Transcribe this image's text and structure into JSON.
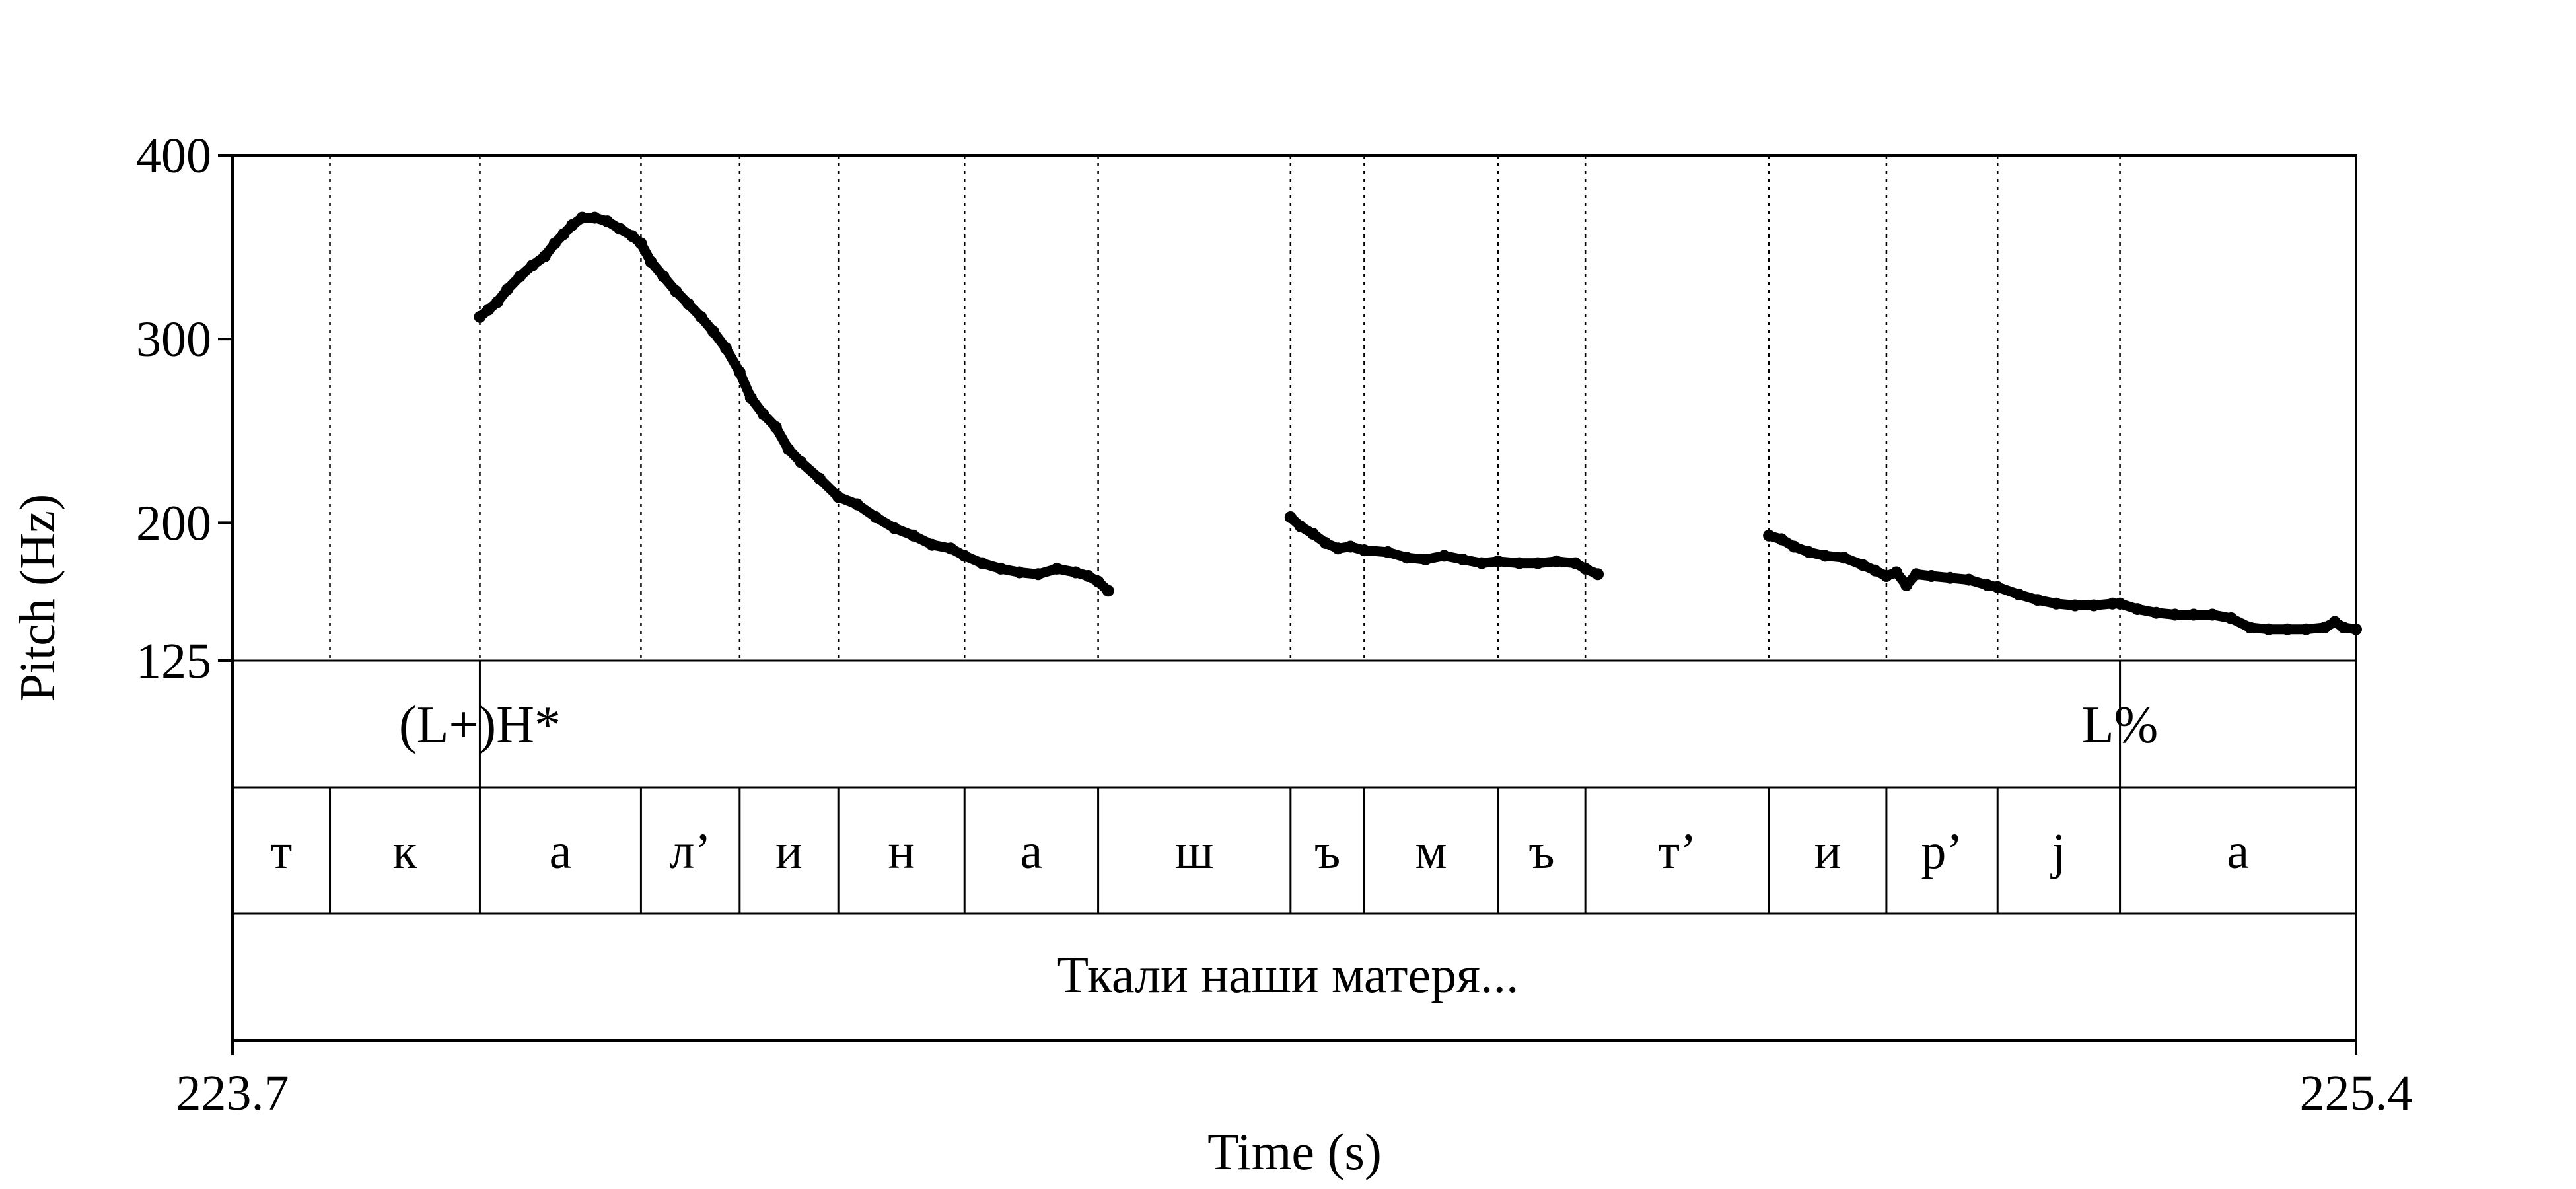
{
  "chart_data": {
    "type": "line",
    "ylabel": "Pitch (Hz)",
    "xlabel": "Time (s)",
    "xlim": [
      223.7,
      225.4
    ],
    "x_tick_labels": [
      "223.7",
      "225.4"
    ],
    "ylim": [
      125,
      400
    ],
    "y_tick_labels": [
      "400",
      "300",
      "200",
      "125"
    ],
    "y_ticks": [
      400,
      300,
      200,
      125
    ],
    "tone_tier": [
      {
        "label": "(L+)H*",
        "time": 223.898
      },
      {
        "label": "L%",
        "time": 225.211
      }
    ],
    "phone_boundaries": [
      223.778,
      223.898,
      224.027,
      224.106,
      224.185,
      224.286,
      224.393,
      224.547,
      224.606,
      224.713,
      224.783,
      224.93,
      225.024,
      225.113,
      225.211
    ],
    "phones": [
      "т",
      "к",
      "а",
      "л’",
      "и",
      "н",
      "а",
      "ш",
      "ъ",
      "м",
      "ъ",
      "т’",
      "и",
      "р’",
      "j",
      "а"
    ],
    "word_tier": "Ткали наши матеря...",
    "series": [
      {
        "values": [
          [
            [
              223.898,
              312
            ],
            [
              223.905,
              316
            ],
            [
              223.912,
              320
            ],
            [
              223.92,
              327
            ],
            [
              223.93,
              334
            ],
            [
              223.94,
              340
            ],
            [
              223.95,
              345
            ],
            [
              223.958,
              352
            ],
            [
              223.965,
              357
            ],
            [
              223.972,
              362
            ],
            [
              223.98,
              366
            ],
            [
              223.99,
              366
            ],
            [
              224.0,
              364
            ],
            [
              224.01,
              360
            ],
            [
              224.02,
              356
            ],
            [
              224.027,
              352
            ],
            [
              224.035,
              342
            ],
            [
              224.045,
              334
            ],
            [
              224.055,
              326
            ],
            [
              224.065,
              319
            ],
            [
              224.075,
              312
            ],
            [
              224.085,
              304
            ],
            [
              224.095,
              295
            ],
            [
              224.106,
              282
            ],
            [
              224.115,
              268
            ],
            [
              224.125,
              259
            ],
            [
              224.135,
              252
            ],
            [
              224.145,
              240
            ],
            [
              224.155,
              233
            ],
            [
              224.17,
              224
            ],
            [
              224.185,
              214
            ],
            [
              224.2,
              210
            ],
            [
              224.215,
              203
            ],
            [
              224.23,
              197
            ],
            [
              224.245,
              193
            ],
            [
              224.26,
              188
            ],
            [
              224.275,
              186
            ],
            [
              224.286,
              182
            ],
            [
              224.3,
              178
            ],
            [
              224.315,
              175
            ],
            [
              224.33,
              173
            ],
            [
              224.345,
              172
            ],
            [
              224.36,
              175
            ],
            [
              224.375,
              173
            ],
            [
              224.385,
              171
            ],
            [
              224.393,
              168
            ],
            [
              224.401,
              163
            ]
          ],
          [
            [
              224.547,
              203
            ],
            [
              224.555,
              198
            ],
            [
              224.565,
              194
            ],
            [
              224.575,
              189
            ],
            [
              224.585,
              186
            ],
            [
              224.595,
              187
            ],
            [
              224.606,
              185
            ],
            [
              224.625,
              184
            ],
            [
              224.64,
              181
            ],
            [
              224.655,
              180
            ],
            [
              224.67,
              182
            ],
            [
              224.685,
              180
            ],
            [
              224.7,
              178
            ],
            [
              224.713,
              179
            ],
            [
              224.73,
              178
            ],
            [
              224.745,
              178
            ],
            [
              224.76,
              179
            ],
            [
              224.775,
              178
            ],
            [
              224.783,
              175
            ],
            [
              224.793,
              172
            ]
          ],
          [
            [
              224.93,
              193
            ],
            [
              224.94,
              191
            ],
            [
              224.95,
              187
            ],
            [
              224.962,
              184
            ],
            [
              224.975,
              182
            ],
            [
              224.99,
              181
            ],
            [
              225.005,
              177
            ],
            [
              225.015,
              174
            ],
            [
              225.024,
              171
            ],
            [
              225.032,
              173
            ],
            [
              225.04,
              166
            ],
            [
              225.048,
              172
            ],
            [
              225.06,
              171
            ],
            [
              225.075,
              170
            ],
            [
              225.09,
              169
            ],
            [
              225.105,
              166
            ],
            [
              225.113,
              165
            ],
            [
              225.13,
              161
            ],
            [
              225.145,
              158
            ],
            [
              225.16,
              156
            ],
            [
              225.175,
              155
            ],
            [
              225.19,
              155
            ],
            [
              225.205,
              156
            ],
            [
              225.211,
              156
            ],
            [
              225.225,
              153
            ],
            [
              225.24,
              151
            ],
            [
              225.255,
              150
            ],
            [
              225.27,
              150
            ],
            [
              225.285,
              150
            ],
            [
              225.3,
              148
            ],
            [
              225.315,
              143
            ],
            [
              225.33,
              142
            ],
            [
              225.345,
              142
            ],
            [
              225.36,
              142
            ],
            [
              225.375,
              143
            ],
            [
              225.383,
              146
            ],
            [
              225.39,
              143
            ],
            [
              225.4,
              142
            ]
          ]
        ]
      }
    ]
  }
}
